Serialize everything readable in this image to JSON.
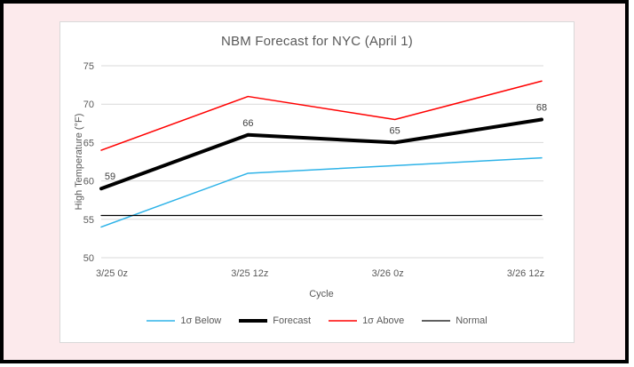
{
  "frame": {
    "background_color": "#FCEAEC",
    "border_color": "#000000",
    "card_background": "#ffffff",
    "card_border_color": "#D9D9D9"
  },
  "chart_data": {
    "type": "line",
    "title": "NBM Forecast for NYC (April 1)",
    "xlabel": "Cycle",
    "ylabel": "High Temperature (°F)",
    "categories": [
      "3/25 0z",
      "3/25 12z",
      "3/26 0z",
      "3/26 12z"
    ],
    "series": [
      {
        "name": "1σ Below",
        "color": "#2EB3E8",
        "width": 1.5,
        "values": [
          54,
          61,
          62,
          63
        ],
        "show_labels": false
      },
      {
        "name": "Forecast",
        "color": "#000000",
        "width": 4,
        "values": [
          59,
          66,
          65,
          68
        ],
        "show_labels": true
      },
      {
        "name": "1σ Above",
        "color": "#FF0000",
        "width": 1.5,
        "values": [
          64,
          71,
          68,
          73
        ],
        "show_labels": false
      },
      {
        "name": "Normal",
        "color": "#000000",
        "width": 1.25,
        "values": [
          55.5,
          55.5,
          55.5,
          55.5
        ],
        "show_labels": false
      }
    ],
    "ylim": [
      50,
      75
    ],
    "yticks": [
      50,
      55,
      60,
      65,
      70,
      75
    ],
    "grid": true,
    "gridline_color": "#D9D9D9",
    "tick_label_color": "#595959",
    "data_label_color": "#404040",
    "legend_position": "bottom"
  }
}
